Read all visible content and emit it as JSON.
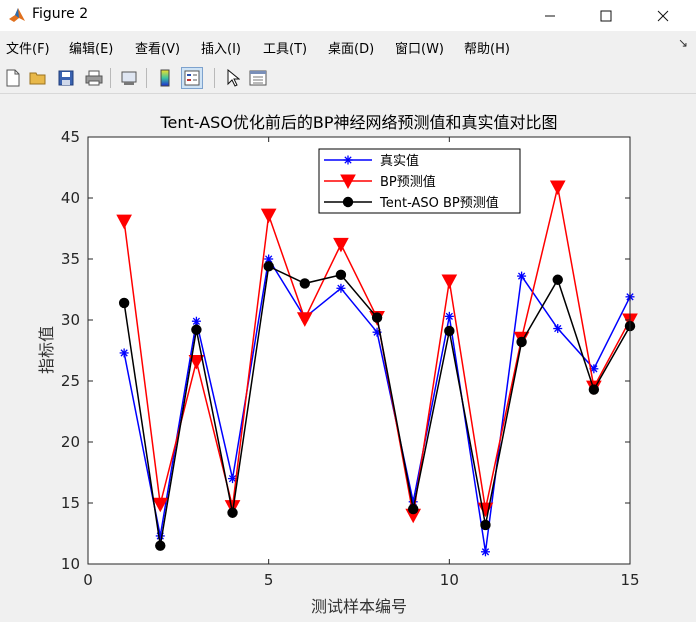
{
  "window": {
    "title": "Figure 2",
    "controls": [
      "minimize-icon",
      "maximize-icon",
      "close-icon"
    ]
  },
  "menu": {
    "items": [
      "文件(F)",
      "编辑(E)",
      "查看(V)",
      "插入(I)",
      "工具(T)",
      "桌面(D)",
      "窗口(W)",
      "帮助(H)"
    ]
  },
  "toolbar": {
    "buttons": [
      "new-figure-icon",
      "open-file-icon",
      "save-icon",
      "print-icon",
      "link-plot-icon",
      "insert-colorbar-icon",
      "insert-legend-icon",
      "edit-plot-icon",
      "property-inspector-icon"
    ]
  },
  "chart_data": {
    "type": "line",
    "title": "Tent-ASO优化前后的BP神经网络预测值和真实值对比图",
    "xlabel": "测试样本编号",
    "ylabel": "指标值",
    "xlim": [
      0,
      15
    ],
    "ylim": [
      10,
      45
    ],
    "xticks": [
      0,
      5,
      10,
      15
    ],
    "yticks": [
      10,
      15,
      20,
      25,
      30,
      35,
      40,
      45
    ],
    "grid": false,
    "legend_position": "top-center",
    "x": [
      1,
      2,
      3,
      4,
      5,
      6,
      7,
      8,
      9,
      10,
      11,
      12,
      13,
      14,
      15
    ],
    "series": [
      {
        "name": "真实值",
        "color": "#0000ff",
        "marker": "asterisk",
        "values": [
          27.3,
          12.3,
          29.9,
          17.0,
          35.0,
          30.2,
          32.6,
          29.0,
          15.1,
          30.3,
          11.0,
          33.6,
          29.3,
          26.0,
          31.9
        ]
      },
      {
        "name": "BP预测值",
        "color": "#ff0000",
        "marker": "triangle-down",
        "values": [
          38.1,
          14.9,
          26.6,
          14.7,
          38.6,
          30.1,
          36.2,
          30.2,
          14.0,
          33.2,
          14.5,
          28.5,
          40.9,
          24.5,
          30.0
        ]
      },
      {
        "name": "Tent-ASO BP预测值",
        "color": "#000000",
        "marker": "circle",
        "values": [
          31.4,
          11.5,
          29.2,
          14.2,
          34.4,
          33.0,
          33.7,
          30.2,
          14.5,
          29.1,
          13.2,
          28.2,
          33.3,
          24.3,
          29.5
        ]
      }
    ]
  }
}
